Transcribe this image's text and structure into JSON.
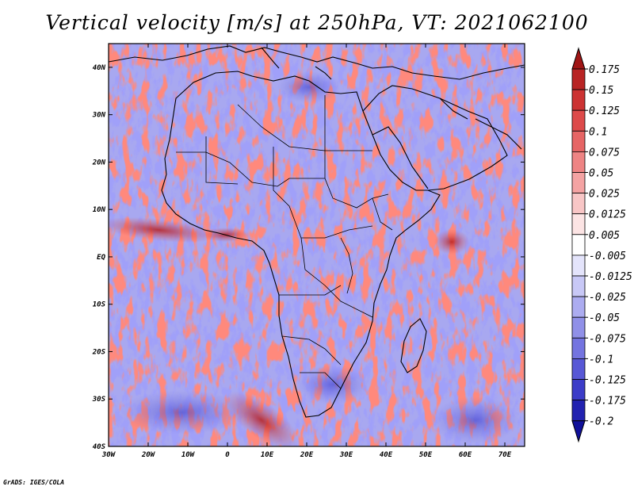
{
  "title": "Vertical velocity [m/s] at 250hPa, VT: 2021062100",
  "credit": "GrADS: IGES/COLA",
  "map": {
    "region": "Africa",
    "projection": "latlon",
    "lon_range": [
      -30,
      75
    ],
    "lat_range": [
      -40,
      45
    ],
    "x_ticks": [
      {
        "lon": -30,
        "label": "30W"
      },
      {
        "lon": -20,
        "label": "20W"
      },
      {
        "lon": -10,
        "label": "10W"
      },
      {
        "lon": 0,
        "label": "0"
      },
      {
        "lon": 10,
        "label": "10E"
      },
      {
        "lon": 20,
        "label": "20E"
      },
      {
        "lon": 30,
        "label": "30E"
      },
      {
        "lon": 40,
        "label": "40E"
      },
      {
        "lon": 50,
        "label": "50E"
      },
      {
        "lon": 60,
        "label": "60E"
      },
      {
        "lon": 70,
        "label": "70E"
      }
    ],
    "y_ticks": [
      {
        "lat": 40,
        "label": "40N"
      },
      {
        "lat": 30,
        "label": "30N"
      },
      {
        "lat": 20,
        "label": "20N"
      },
      {
        "lat": 10,
        "label": "10N"
      },
      {
        "lat": 0,
        "label": "EQ"
      },
      {
        "lat": -10,
        "label": "10S"
      },
      {
        "lat": -20,
        "label": "20S"
      },
      {
        "lat": -30,
        "label": "30S"
      },
      {
        "lat": -40,
        "label": "40S"
      }
    ]
  },
  "colorbar": {
    "labels": [
      "0.175",
      "0.15",
      "0.125",
      "0.1",
      "0.075",
      "0.05",
      "0.025",
      "0.0125",
      "0.005",
      "-0.005",
      "-0.0125",
      "-0.025",
      "-0.05",
      "-0.075",
      "-0.1",
      "-0.125",
      "-0.175",
      "-0.2"
    ],
    "colors": [
      "#a01515",
      "#b82424",
      "#cc3333",
      "#dd4a4a",
      "#e66565",
      "#ee8484",
      "#f4a3a3",
      "#f8c6c6",
      "#fce4e4",
      "#ffffff",
      "#e4e4fb",
      "#c8c8f6",
      "#acacf0",
      "#9090e8",
      "#7474e0",
      "#5858d6",
      "#3c3cc8",
      "#2222b0",
      "#10109a"
    ]
  }
}
